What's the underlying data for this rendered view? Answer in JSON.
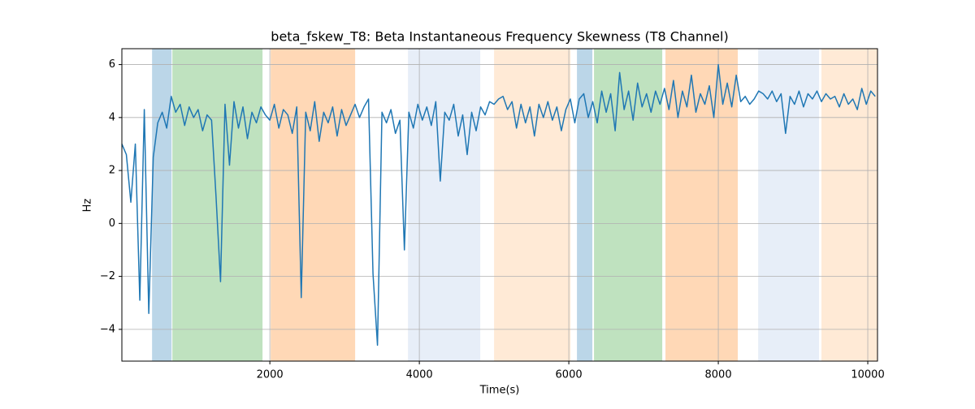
{
  "chart_data": {
    "type": "line",
    "title": "beta_fskew_T8: Beta Instantaneous Frequency Skewness (T8 Channel)",
    "xlabel": "Time(s)",
    "ylabel": "Hz",
    "xlim": [
      20,
      10130
    ],
    "ylim": [
      -5.2,
      6.6
    ],
    "xticks": [
      2000,
      4000,
      6000,
      8000,
      10000
    ],
    "yticks": [
      {
        "value": -4,
        "label": "−4"
      },
      {
        "value": -2,
        "label": "−2"
      },
      0,
      2,
      4,
      6
    ],
    "grid": true,
    "spans": [
      {
        "start": 424,
        "end": 685,
        "color": "#1f77b4",
        "alpha": 0.3
      },
      {
        "start": 696,
        "end": 1902,
        "color": "#2ca02c",
        "alpha": 0.3
      },
      {
        "start": 2011,
        "end": 3141,
        "color": "#ff7f0e",
        "alpha": 0.3
      },
      {
        "start": 3848,
        "end": 4815,
        "color": "#aec7e8",
        "alpha": 0.3
      },
      {
        "start": 5000,
        "end": 6022,
        "color": "#ffbb78",
        "alpha": 0.3
      },
      {
        "start": 6109,
        "end": 6315,
        "color": "#1f77b4",
        "alpha": 0.3
      },
      {
        "start": 6337,
        "end": 7250,
        "color": "#2ca02c",
        "alpha": 0.3
      },
      {
        "start": 7293,
        "end": 8261,
        "color": "#ff7f0e",
        "alpha": 0.3
      },
      {
        "start": 8533,
        "end": 9348,
        "color": "#aec7e8",
        "alpha": 0.3
      },
      {
        "start": 9380,
        "end": 10130,
        "color": "#ffbb78",
        "alpha": 0.3
      }
    ],
    "series": [
      {
        "color": "#1f77b4",
        "x": [
          20,
          80,
          140,
          200,
          260,
          320,
          380,
          440,
          500,
          560,
          620,
          680,
          740,
          800,
          860,
          920,
          980,
          1040,
          1100,
          1160,
          1220,
          1280,
          1340,
          1400,
          1460,
          1520,
          1580,
          1640,
          1700,
          1760,
          1820,
          1880,
          1940,
          2000,
          2060,
          2120,
          2180,
          2240,
          2300,
          2360,
          2420,
          2480,
          2540,
          2600,
          2660,
          2720,
          2780,
          2840,
          2900,
          2960,
          3020,
          3080,
          3140,
          3200,
          3260,
          3320,
          3380,
          3440,
          3500,
          3560,
          3620,
          3680,
          3740,
          3800,
          3860,
          3920,
          3980,
          4040,
          4100,
          4160,
          4220,
          4280,
          4340,
          4400,
          4460,
          4520,
          4580,
          4640,
          4700,
          4760,
          4820,
          4880,
          4940,
          5000,
          5060,
          5120,
          5180,
          5240,
          5300,
          5360,
          5420,
          5480,
          5540,
          5600,
          5660,
          5720,
          5780,
          5840,
          5900,
          5960,
          6020,
          6080,
          6140,
          6200,
          6260,
          6320,
          6380,
          6440,
          6500,
          6560,
          6620,
          6680,
          6740,
          6800,
          6860,
          6920,
          6980,
          7040,
          7100,
          7160,
          7220,
          7280,
          7340,
          7400,
          7460,
          7520,
          7580,
          7640,
          7700,
          7760,
          7820,
          7880,
          7940,
          8000,
          8060,
          8120,
          8180,
          8240,
          8300,
          8360,
          8420,
          8480,
          8540,
          8600,
          8660,
          8720,
          8780,
          8840,
          8900,
          8960,
          9020,
          9080,
          9140,
          9200,
          9260,
          9320,
          9380,
          9440,
          9500,
          9560,
          9620,
          9680,
          9740,
          9800,
          9860,
          9920,
          9980,
          10040,
          10100
        ],
        "values": [
          3.0,
          2.6,
          0.8,
          3.0,
          -2.9,
          4.3,
          -3.4,
          2.5,
          3.8,
          4.2,
          3.6,
          4.8,
          4.2,
          4.5,
          3.7,
          4.4,
          4.0,
          4.3,
          3.5,
          4.1,
          3.9,
          1.0,
          -2.2,
          4.5,
          2.2,
          4.6,
          3.6,
          4.4,
          3.2,
          4.2,
          3.8,
          4.4,
          4.1,
          3.9,
          4.5,
          3.6,
          4.3,
          4.1,
          3.4,
          4.4,
          -2.8,
          4.2,
          3.5,
          4.6,
          3.1,
          4.2,
          3.8,
          4.4,
          3.3,
          4.3,
          3.7,
          4.1,
          4.5,
          4.0,
          4.4,
          4.7,
          -1.9,
          -4.6,
          4.2,
          3.8,
          4.3,
          3.4,
          3.9,
          -1.0,
          4.2,
          3.6,
          4.5,
          3.9,
          4.4,
          3.7,
          4.6,
          1.6,
          4.2,
          3.9,
          4.5,
          3.3,
          4.1,
          2.6,
          4.2,
          3.5,
          4.4,
          4.1,
          4.6,
          4.5,
          4.7,
          4.8,
          4.3,
          4.6,
          3.6,
          4.5,
          3.8,
          4.4,
          3.3,
          4.5,
          4.0,
          4.6,
          3.9,
          4.4,
          3.5,
          4.3,
          4.7,
          3.8,
          4.7,
          4.9,
          4.0,
          4.6,
          3.8,
          5.0,
          4.2,
          4.9,
          3.5,
          5.7,
          4.3,
          5.0,
          3.9,
          5.3,
          4.4,
          4.9,
          4.2,
          5.0,
          4.5,
          5.1,
          4.3,
          5.4,
          4.0,
          5.0,
          4.4,
          5.6,
          4.2,
          4.9,
          4.5,
          5.2,
          4.0,
          6.0,
          4.5,
          5.3,
          4.4,
          5.6,
          4.6,
          4.8,
          4.5,
          4.7,
          5.0,
          4.9,
          4.7,
          5.0,
          4.6,
          4.9,
          3.4,
          4.8,
          4.5,
          5.0,
          4.4,
          4.9,
          4.7,
          5.0,
          4.6,
          4.9,
          4.7,
          4.8,
          4.4,
          4.9,
          4.5,
          4.7,
          4.3,
          5.1,
          4.5,
          5.0,
          4.8
        ]
      }
    ]
  }
}
